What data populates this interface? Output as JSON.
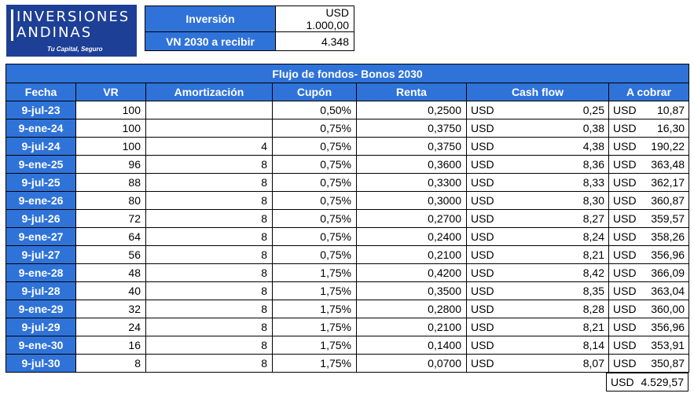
{
  "logo": {
    "line1": "INVERSIONES",
    "line2": "ANDINAS",
    "tagline": "Tu Capital, Seguro"
  },
  "info": [
    {
      "label": "Inversión",
      "value": "USD  1.000,00"
    },
    {
      "label": "VN 2030 a recibir",
      "value": "4.348"
    }
  ],
  "table": {
    "title": "Flujo de fondos- Bonos 2030",
    "headers": [
      "Fecha",
      "VR",
      "Amortización",
      "Cupón",
      "Renta",
      "Cash flow",
      "A cobrar"
    ],
    "currency": "USD",
    "rows": [
      {
        "fecha": "9-jul-23",
        "vr": "100",
        "amort": "",
        "cupon": "0,50%",
        "renta": "0,2500",
        "cash": "0,25",
        "cobrar": "10,87"
      },
      {
        "fecha": "9-ene-24",
        "vr": "100",
        "amort": "",
        "cupon": "0,75%",
        "renta": "0,3750",
        "cash": "0,38",
        "cobrar": "16,30"
      },
      {
        "fecha": "9-jul-24",
        "vr": "100",
        "amort": "4",
        "cupon": "0,75%",
        "renta": "0,3750",
        "cash": "4,38",
        "cobrar": "190,22"
      },
      {
        "fecha": "9-ene-25",
        "vr": "96",
        "amort": "8",
        "cupon": "0,75%",
        "renta": "0,3600",
        "cash": "8,36",
        "cobrar": "363,48"
      },
      {
        "fecha": "9-jul-25",
        "vr": "88",
        "amort": "8",
        "cupon": "0,75%",
        "renta": "0,3300",
        "cash": "8,33",
        "cobrar": "362,17"
      },
      {
        "fecha": "9-ene-26",
        "vr": "80",
        "amort": "8",
        "cupon": "0,75%",
        "renta": "0,3000",
        "cash": "8,30",
        "cobrar": "360,87"
      },
      {
        "fecha": "9-jul-26",
        "vr": "72",
        "amort": "8",
        "cupon": "0,75%",
        "renta": "0,2700",
        "cash": "8,27",
        "cobrar": "359,57"
      },
      {
        "fecha": "9-ene-27",
        "vr": "64",
        "amort": "8",
        "cupon": "0,75%",
        "renta": "0,2400",
        "cash": "8,24",
        "cobrar": "358,26"
      },
      {
        "fecha": "9-jul-27",
        "vr": "56",
        "amort": "8",
        "cupon": "0,75%",
        "renta": "0,2100",
        "cash": "8,21",
        "cobrar": "356,96"
      },
      {
        "fecha": "9-ene-28",
        "vr": "48",
        "amort": "8",
        "cupon": "1,75%",
        "renta": "0,4200",
        "cash": "8,42",
        "cobrar": "366,09"
      },
      {
        "fecha": "9-jul-28",
        "vr": "40",
        "amort": "8",
        "cupon": "1,75%",
        "renta": "0,3500",
        "cash": "8,35",
        "cobrar": "363,04"
      },
      {
        "fecha": "9-ene-29",
        "vr": "32",
        "amort": "8",
        "cupon": "1,75%",
        "renta": "0,2800",
        "cash": "8,28",
        "cobrar": "360,00"
      },
      {
        "fecha": "9-jul-29",
        "vr": "24",
        "amort": "8",
        "cupon": "1,75%",
        "renta": "0,2100",
        "cash": "8,21",
        "cobrar": "356,96"
      },
      {
        "fecha": "9-ene-30",
        "vr": "16",
        "amort": "8",
        "cupon": "1,75%",
        "renta": "0,1400",
        "cash": "8,14",
        "cobrar": "353,91"
      },
      {
        "fecha": "9-jul-30",
        "vr": "8",
        "amort": "8",
        "cupon": "1,75%",
        "renta": "0,0700",
        "cash": "8,07",
        "cobrar": "350,87"
      }
    ],
    "total": {
      "currency": "USD",
      "amount": "4.529,57"
    }
  },
  "colors": {
    "header_blue": "#2f73d9",
    "logo_blue": "#1d3f95"
  }
}
